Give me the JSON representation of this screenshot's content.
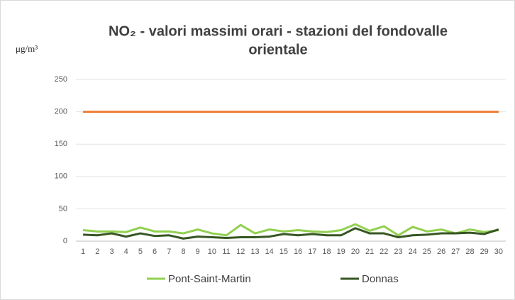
{
  "chart_data": {
    "type": "line",
    "title": [
      "NO₂ - valori massimi orari - stazioni del fondovalle",
      "orientale"
    ],
    "y_label": "μg/m³",
    "categories": [
      "1",
      "2",
      "3",
      "4",
      "5",
      "6",
      "7",
      "8",
      "9",
      "10",
      "11",
      "12",
      "13",
      "14",
      "15",
      "16",
      "17",
      "18",
      "19",
      "20",
      "21",
      "22",
      "23",
      "24",
      "25",
      "26",
      "27",
      "28",
      "29",
      "30"
    ],
    "series": [
      {
        "name": "Pont-Saint-Martin",
        "color": "#92d050",
        "values": [
          17,
          15,
          15,
          14,
          21,
          15,
          15,
          12,
          18,
          12,
          9,
          25,
          12,
          18,
          15,
          17,
          15,
          14,
          17,
          26,
          16,
          23,
          9,
          22,
          15,
          18,
          12,
          18,
          14,
          17
        ]
      },
      {
        "name": "Donnas",
        "color": "#375623",
        "values": [
          10,
          9,
          12,
          7,
          12,
          8,
          9,
          4,
          7,
          6,
          5,
          6,
          6,
          7,
          11,
          9,
          11,
          9,
          9,
          20,
          12,
          12,
          6,
          9,
          10,
          12,
          12,
          13,
          11,
          18
        ]
      }
    ],
    "reference_line": {
      "value": 200,
      "color": "#ed7d31"
    },
    "ylim": [
      0,
      250
    ],
    "yticks": [
      0,
      50,
      100,
      150,
      200,
      250
    ],
    "grid": true
  }
}
